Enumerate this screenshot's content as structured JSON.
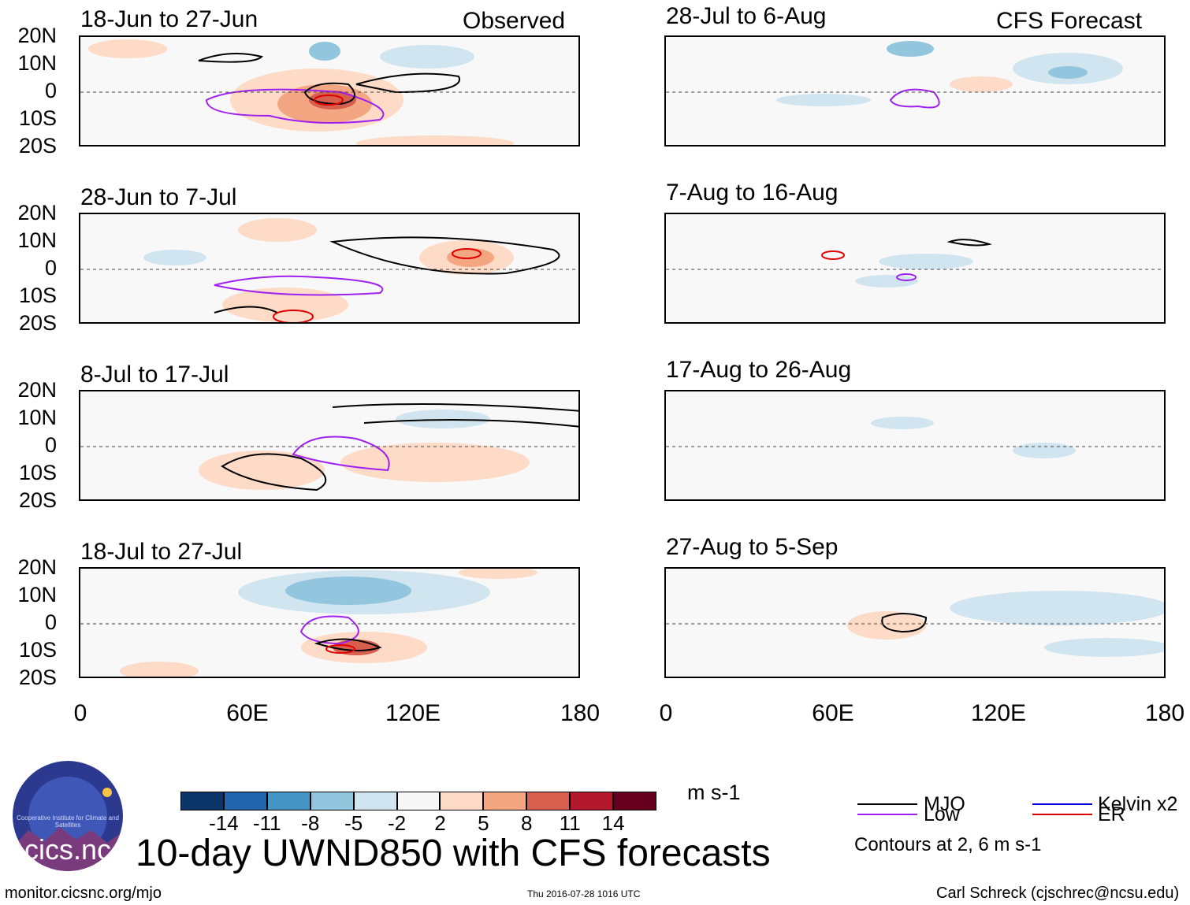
{
  "header": {
    "left_label": "Observed",
    "right_label": "CFS Forecast"
  },
  "panels": {
    "observed": [
      {
        "title": "18-Jun to 27-Jun"
      },
      {
        "title": "28-Jun to 7-Jul"
      },
      {
        "title": "8-Jul to 17-Jul"
      },
      {
        "title": "18-Jul to 27-Jul"
      }
    ],
    "forecast": [
      {
        "title": "28-Jul to 6-Aug"
      },
      {
        "title": "7-Aug to 16-Aug"
      },
      {
        "title": "17-Aug to 26-Aug"
      },
      {
        "title": "27-Aug to 5-Sep"
      }
    ]
  },
  "chart_data": {
    "type": "heatmap",
    "title": "10-day UWND850 with CFS forecasts",
    "variable": "850 hPa zonal wind anomaly",
    "units": "m s-1",
    "xlim": [
      0,
      180
    ],
    "ylim": [
      -20,
      20
    ],
    "x_ticks": [
      "0",
      "60E",
      "120E",
      "180"
    ],
    "y_ticks": [
      "20N",
      "10N",
      "0",
      "10S",
      "20S"
    ],
    "colorbar": {
      "levels": [
        "-14",
        "-11",
        "-8",
        "-5",
        "-2",
        "2",
        "5",
        "8",
        "11",
        "14"
      ],
      "colors": [
        "#0b3468",
        "#2166ac",
        "#4393c3",
        "#92c5de",
        "#d1e5f0",
        "#f7f7f7",
        "#fddbc7",
        "#f4a582",
        "#d6604d",
        "#b2182b",
        "#67001f"
      ]
    },
    "contour_legend": [
      {
        "name": "MJO",
        "color": "#000000"
      },
      {
        "name": "Kelvin x2",
        "color": "#0000dd"
      },
      {
        "name": "Low",
        "color": "#a020f0"
      },
      {
        "name": "ER",
        "color": "#e00000"
      }
    ],
    "contour_note": "Contours at 2, 6 m s-1"
  },
  "footer": {
    "url": "monitor.cicsnc.org/mjo",
    "timestamp": "Thu 2016-07-28 1016 UTC",
    "author": "Carl Schreck (cjschrec@ncsu.edu)"
  },
  "logo": {
    "text": "cics.nc",
    "ring_text": "Cooperative Institute for Climate and Satellites"
  }
}
